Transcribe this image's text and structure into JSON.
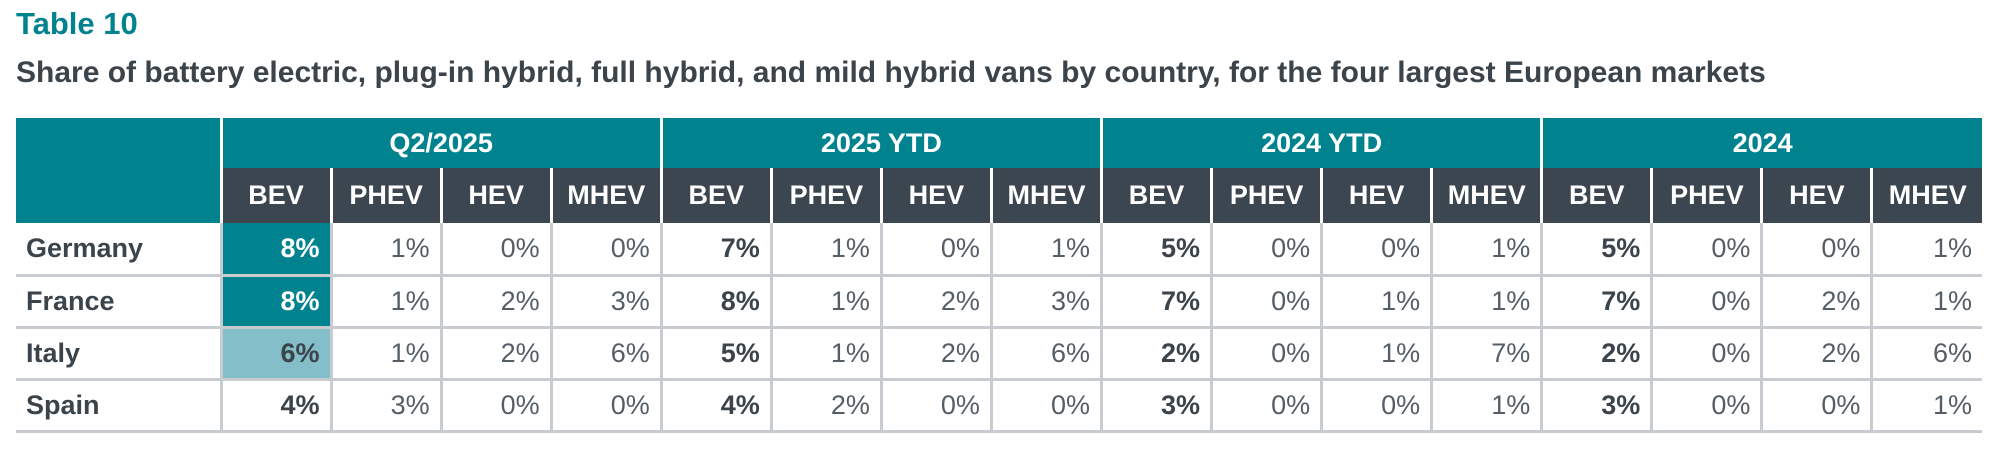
{
  "table_label": "Table 10",
  "title": "Share of battery electric, plug-in hybrid, full hybrid, and mild hybrid vans by country, for the four largest European markets",
  "periods": [
    "Q2/2025",
    "2025 YTD",
    "2024 YTD",
    "2024"
  ],
  "columns": [
    "BEV",
    "PHEV",
    "HEV",
    "MHEV"
  ],
  "rows": [
    {
      "country": "Germany",
      "cells": [
        [
          "8%",
          "1%",
          "0%",
          "0%"
        ],
        [
          "7%",
          "1%",
          "0%",
          "1%"
        ],
        [
          "5%",
          "0%",
          "0%",
          "1%"
        ],
        [
          "5%",
          "0%",
          "0%",
          "1%"
        ]
      ]
    },
    {
      "country": "France",
      "cells": [
        [
          "8%",
          "1%",
          "2%",
          "3%"
        ],
        [
          "8%",
          "1%",
          "2%",
          "3%"
        ],
        [
          "7%",
          "0%",
          "1%",
          "1%"
        ],
        [
          "7%",
          "0%",
          "2%",
          "1%"
        ]
      ]
    },
    {
      "country": "Italy",
      "cells": [
        [
          "6%",
          "1%",
          "2%",
          "6%"
        ],
        [
          "5%",
          "1%",
          "2%",
          "6%"
        ],
        [
          "2%",
          "0%",
          "1%",
          "7%"
        ],
        [
          "2%",
          "0%",
          "2%",
          "6%"
        ]
      ]
    },
    {
      "country": "Spain",
      "cells": [
        [
          "4%",
          "3%",
          "0%",
          "0%"
        ],
        [
          "4%",
          "2%",
          "0%",
          "0%"
        ],
        [
          "3%",
          "0%",
          "0%",
          "1%"
        ],
        [
          "3%",
          "0%",
          "0%",
          "1%"
        ]
      ]
    }
  ],
  "colors": {
    "teal": "#00838f",
    "teal_light": "#84bec8",
    "header_dark": "#3b4650",
    "text": "#3b434b",
    "rule": "#c8ccd0"
  }
}
